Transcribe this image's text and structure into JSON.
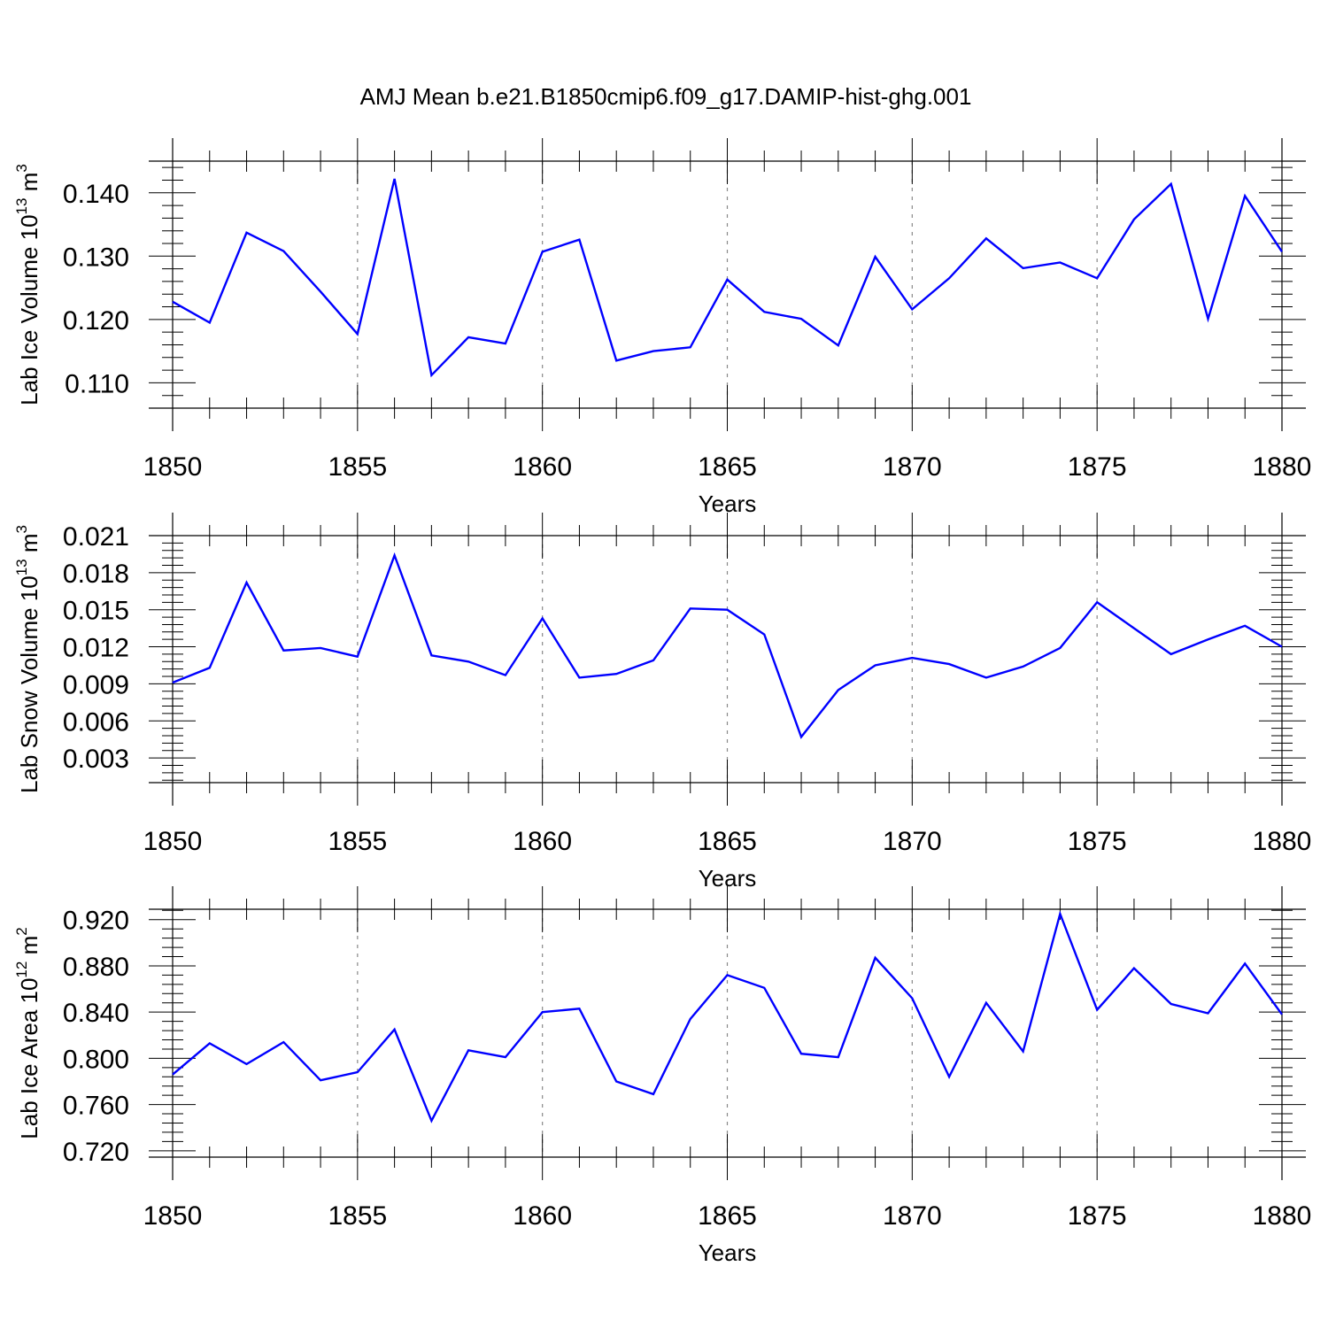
{
  "title": "AMJ Mean b.e21.B1850cmip6.f09_g17.DAMIP-hist-ghg.001",
  "colors": {
    "series": "#0000ff",
    "grid": "#888888",
    "axis": "#000000"
  },
  "chart_data": [
    {
      "type": "line",
      "ylabel": "Lab Ice Volume 10",
      "ylabel_sup": "13",
      "ylabel_unit": " m",
      "ylabel_unit_sup": "3",
      "xlabel": "Years",
      "xlim": [
        1850,
        1880
      ],
      "ylim": [
        0.106,
        0.145
      ],
      "x_ticks": [
        1850,
        1855,
        1860,
        1865,
        1870,
        1875,
        1880
      ],
      "y_ticks": [
        "0.110",
        "0.120",
        "0.130",
        "0.140"
      ],
      "y_tick_values": [
        0.11,
        0.12,
        0.13,
        0.14
      ],
      "y_minor_step": 0.002,
      "grid": "x-dashed",
      "x": [
        1850,
        1851,
        1852,
        1853,
        1854,
        1855,
        1856,
        1857,
        1858,
        1859,
        1860,
        1861,
        1862,
        1863,
        1864,
        1865,
        1866,
        1867,
        1868,
        1869,
        1870,
        1871,
        1872,
        1873,
        1874,
        1875,
        1876,
        1877,
        1878,
        1879,
        1880
      ],
      "values": [
        0.1228,
        0.1195,
        0.1337,
        0.1308,
        0.1244,
        0.1177,
        0.1422,
        0.1112,
        0.1172,
        0.1162,
        0.1307,
        0.1326,
        0.1135,
        0.115,
        0.1156,
        0.1263,
        0.1212,
        0.1201,
        0.1159,
        0.1299,
        0.1216,
        0.1265,
        0.1328,
        0.1281,
        0.129,
        0.1265,
        0.1358,
        0.1414,
        0.1201,
        0.1395,
        0.1307
      ]
    },
    {
      "type": "line",
      "ylabel": "Lab Snow Volume 10",
      "ylabel_sup": "13",
      "ylabel_unit": " m",
      "ylabel_unit_sup": "3",
      "xlabel": "Years",
      "xlim": [
        1850,
        1880
      ],
      "ylim": [
        0.001,
        0.021
      ],
      "x_ticks": [
        1850,
        1855,
        1860,
        1865,
        1870,
        1875,
        1880
      ],
      "y_ticks": [
        "0.003",
        "0.006",
        "0.009",
        "0.012",
        "0.015",
        "0.018",
        "0.021"
      ],
      "y_tick_values": [
        0.003,
        0.006,
        0.009,
        0.012,
        0.015,
        0.018,
        0.021
      ],
      "y_minor_step": 0.0006,
      "grid": "x-dashed",
      "x": [
        1850,
        1851,
        1852,
        1853,
        1854,
        1855,
        1856,
        1857,
        1858,
        1859,
        1860,
        1861,
        1862,
        1863,
        1864,
        1865,
        1866,
        1867,
        1868,
        1869,
        1870,
        1871,
        1872,
        1873,
        1874,
        1875,
        1876,
        1877,
        1878,
        1879,
        1880
      ],
      "values": [
        0.0091,
        0.0103,
        0.0172,
        0.0117,
        0.0119,
        0.0112,
        0.0194,
        0.0113,
        0.0108,
        0.0097,
        0.0143,
        0.0095,
        0.0098,
        0.0109,
        0.0151,
        0.015,
        0.013,
        0.0047,
        0.0085,
        0.0105,
        0.0111,
        0.0106,
        0.0095,
        0.0104,
        0.0119,
        0.0156,
        0.0135,
        0.0114,
        0.0126,
        0.0137,
        0.012
      ]
    },
    {
      "type": "line",
      "ylabel": "Lab Ice Area 10",
      "ylabel_sup": "12",
      "ylabel_unit": " m",
      "ylabel_unit_sup": "2",
      "xlabel": "Years",
      "xlim": [
        1850,
        1880
      ],
      "ylim": [
        0.7145,
        0.929
      ],
      "x_ticks": [
        1850,
        1855,
        1860,
        1865,
        1870,
        1875,
        1880
      ],
      "y_ticks": [
        "0.720",
        "0.760",
        "0.800",
        "0.840",
        "0.880",
        "0.920"
      ],
      "y_tick_values": [
        0.72,
        0.76,
        0.8,
        0.84,
        0.88,
        0.92
      ],
      "y_minor_step": 0.008,
      "grid": "x-dashed",
      "x": [
        1850,
        1851,
        1852,
        1853,
        1854,
        1855,
        1856,
        1857,
        1858,
        1859,
        1860,
        1861,
        1862,
        1863,
        1864,
        1865,
        1866,
        1867,
        1868,
        1869,
        1870,
        1871,
        1872,
        1873,
        1874,
        1875,
        1876,
        1877,
        1878,
        1879,
        1880
      ],
      "values": [
        0.786,
        0.813,
        0.795,
        0.814,
        0.781,
        0.788,
        0.825,
        0.746,
        0.807,
        0.801,
        0.84,
        0.843,
        0.78,
        0.769,
        0.834,
        0.872,
        0.861,
        0.804,
        0.801,
        0.887,
        0.852,
        0.784,
        0.848,
        0.806,
        0.925,
        0.842,
        0.878,
        0.847,
        0.839,
        0.882,
        0.838
      ]
    }
  ]
}
